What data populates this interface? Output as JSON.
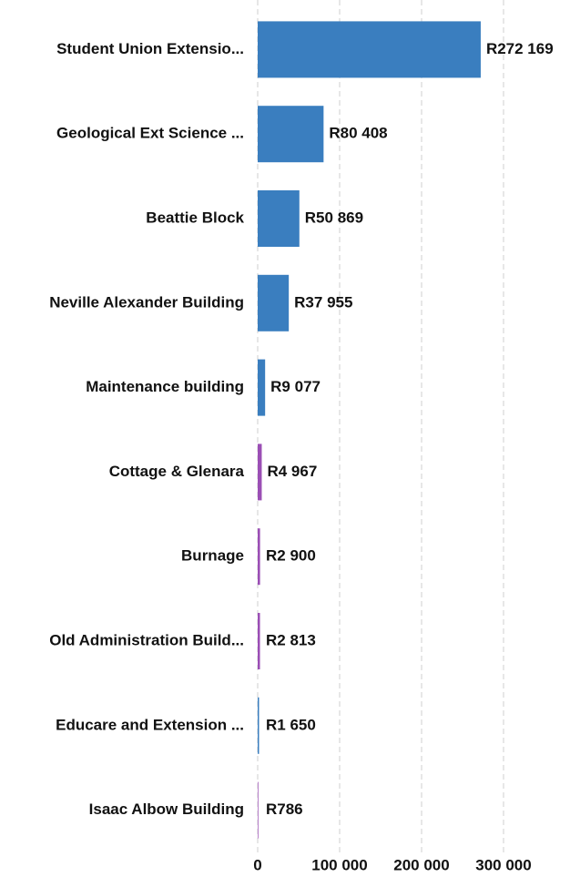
{
  "chart_data": {
    "type": "bar",
    "orientation": "horizontal",
    "categories": [
      "Student Union Extensio...",
      "Geological Ext Science ...",
      "Beattie Block",
      "Neville Alexander Building",
      "Maintenance building",
      "Cottage & Glenara",
      "Burnage",
      "Old Administration Build...",
      "Educare and Extension ...",
      "Isaac Albow Building"
    ],
    "values": [
      272169,
      80408,
      50869,
      37955,
      9077,
      4967,
      2900,
      2813,
      1650,
      786
    ],
    "value_labels": [
      "R272 169",
      "R80 408",
      "R50 869",
      "R37 955",
      "R9 077",
      "R4 967",
      "R2 900",
      "R2 813",
      "R1 650",
      "R786"
    ],
    "colors": [
      "#3a7ebf",
      "#3a7ebf",
      "#3a7ebf",
      "#3a7ebf",
      "#3a7ebf",
      "#9b4fb5",
      "#9b4fb5",
      "#9b4fb5",
      "#3a7ebf",
      "#9b4fb5"
    ],
    "xlim": [
      0,
      300000
    ],
    "xticks": [
      0,
      {
        "value": 100000,
        "label": "100 000"
      },
      {
        "value": 200000,
        "label": "200 000"
      },
      {
        "value": 300000,
        "label": "300 000"
      }
    ],
    "grid": true
  }
}
